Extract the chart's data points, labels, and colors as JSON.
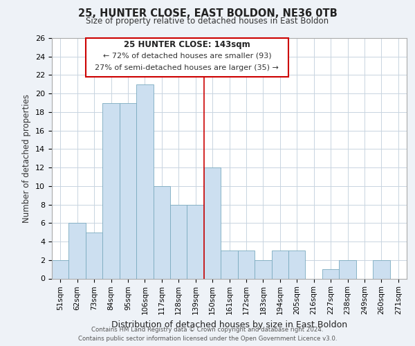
{
  "title": "25, HUNTER CLOSE, EAST BOLDON, NE36 0TB",
  "subtitle": "Size of property relative to detached houses in East Boldon",
  "xlabel": "Distribution of detached houses by size in East Boldon",
  "ylabel": "Number of detached properties",
  "bins": [
    "51sqm",
    "62sqm",
    "73sqm",
    "84sqm",
    "95sqm",
    "106sqm",
    "117sqm",
    "128sqm",
    "139sqm",
    "150sqm",
    "161sqm",
    "172sqm",
    "183sqm",
    "194sqm",
    "205sqm",
    "216sqm",
    "227sqm",
    "238sqm",
    "249sqm",
    "260sqm",
    "271sqm"
  ],
  "values": [
    2,
    6,
    5,
    19,
    19,
    21,
    10,
    8,
    8,
    12,
    3,
    3,
    2,
    3,
    3,
    0,
    1,
    2,
    0,
    2,
    0
  ],
  "bar_color": "#ccdff0",
  "bar_edge_color": "#7aaabf",
  "property_line_x": 8.5,
  "annotation_title": "25 HUNTER CLOSE: 143sqm",
  "annotation_line1": "← 72% of detached houses are smaller (93)",
  "annotation_line2": "27% of semi-detached houses are larger (35) →",
  "annotation_box_edge": "#cc0000",
  "line_color": "#cc0000",
  "ylim": [
    0,
    26
  ],
  "yticks": [
    0,
    2,
    4,
    6,
    8,
    10,
    12,
    14,
    16,
    18,
    20,
    22,
    24,
    26
  ],
  "footer_line1": "Contains HM Land Registry data © Crown copyright and database right 2024.",
  "footer_line2": "Contains public sector information licensed under the Open Government Licence v3.0.",
  "bg_color": "#eef2f7",
  "plot_bg_color": "#ffffff",
  "grid_color": "#c8d4e0"
}
